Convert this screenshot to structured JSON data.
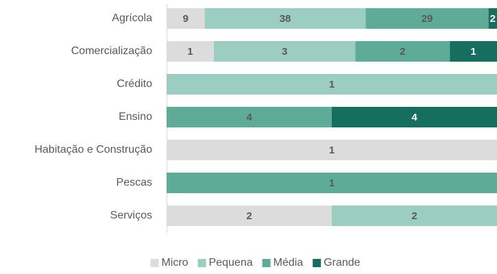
{
  "chart_data": {
    "type": "bar",
    "orientation": "horizontal",
    "stacked": "percent",
    "categories": [
      "Agrícola",
      "Comercialização",
      "Crédito",
      "Ensino",
      "Habitação e Construção",
      "Pescas",
      "Serviços"
    ],
    "series": [
      {
        "name": "Micro",
        "color": "#dcdcdc",
        "label_color": "#595959",
        "values": [
          9,
          1,
          null,
          null,
          1,
          null,
          2
        ]
      },
      {
        "name": "Pequena",
        "color": "#9ccdc1",
        "label_color": "#595959",
        "values": [
          38,
          3,
          1,
          null,
          null,
          null,
          2
        ]
      },
      {
        "name": "Média",
        "color": "#5eab98",
        "label_color": "#595959",
        "values": [
          29,
          2,
          null,
          4,
          null,
          1,
          null
        ]
      },
      {
        "name": "Grande",
        "color": "#156e5e",
        "label_color": "#ffffff",
        "values": [
          2,
          1,
          null,
          4,
          null,
          null,
          null
        ]
      }
    ],
    "legend": "bottom"
  }
}
